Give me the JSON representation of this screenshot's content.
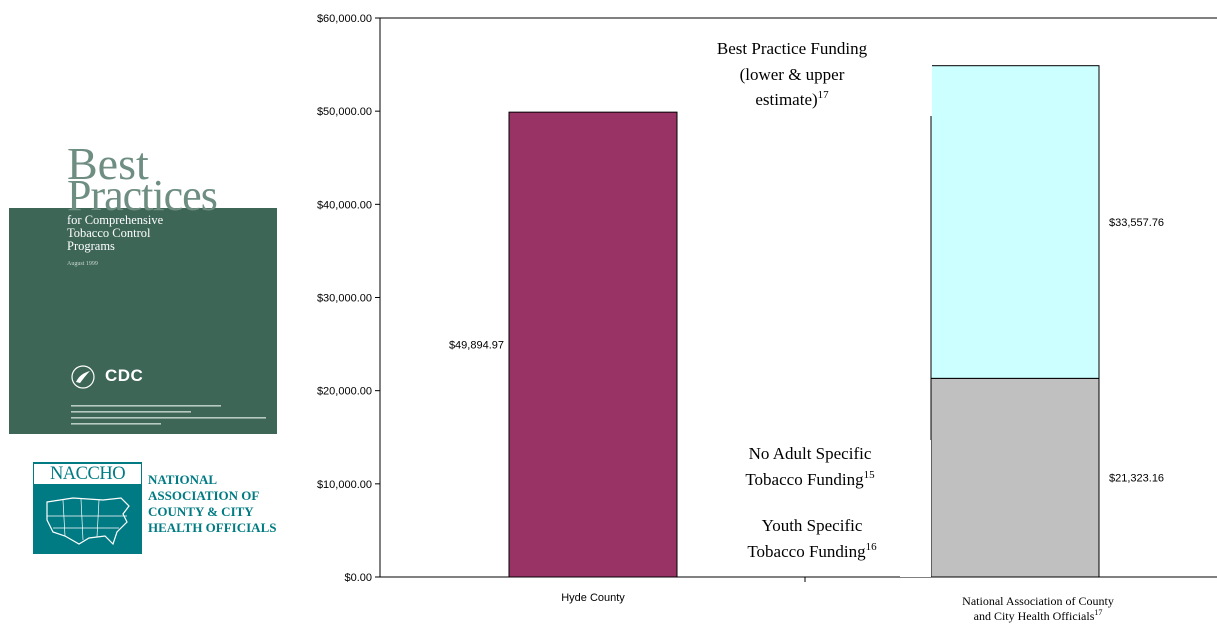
{
  "chart_data": {
    "type": "bar",
    "categories": [
      "Hyde County",
      "National Association of County and City Health Officials"
    ],
    "category_superscripts": [
      "",
      "17"
    ],
    "ylim": [
      0,
      60000
    ],
    "y_ticks": [
      "$0.00",
      "$10,000.00",
      "$20,000.00",
      "$30,000.00",
      "$40,000.00",
      "$50,000.00",
      "$60,000.00"
    ],
    "y_tick_values": [
      0,
      10000,
      20000,
      30000,
      40000,
      50000,
      60000
    ],
    "bars": [
      {
        "category": "Hyde County",
        "value": 49894.97,
        "label": "$49,894.97",
        "color": "#993366"
      },
      {
        "category": "National Association of County and City Health Officials",
        "value": 21323.16,
        "label": "$21,323.16",
        "color": "#c0c0c0"
      },
      {
        "category": "National Association of County and City Health Officials",
        "value": 33557.76,
        "label": "$33,557.76",
        "color": "#ccffff",
        "stacked_on": 21323.16
      }
    ],
    "annotations": [
      {
        "lines": [
          "Best Practice Funding",
          "(lower & upper",
          "estimate)"
        ],
        "superscript": "17"
      },
      {
        "lines": [
          "No Adult Specific",
          "Tobacco Funding"
        ],
        "superscript": "15"
      },
      {
        "lines": [
          "Youth Specific",
          "Tobacco Funding"
        ],
        "superscript": "16"
      }
    ]
  },
  "cover": {
    "title_line1": "Best",
    "title_line2": "Practices",
    "subtitle": "for Comprehensive\nTobacco Control\nPrograms",
    "date": "August 1999",
    "agency": "CDC",
    "band_color": "#3d6657"
  },
  "naccho": {
    "wordmark": "NACCHO",
    "name": "NATIONAL\nASSOCIATION OF\nCOUNTY & CITY\nHEALTH OFFICIALS",
    "color": "#007b83"
  }
}
